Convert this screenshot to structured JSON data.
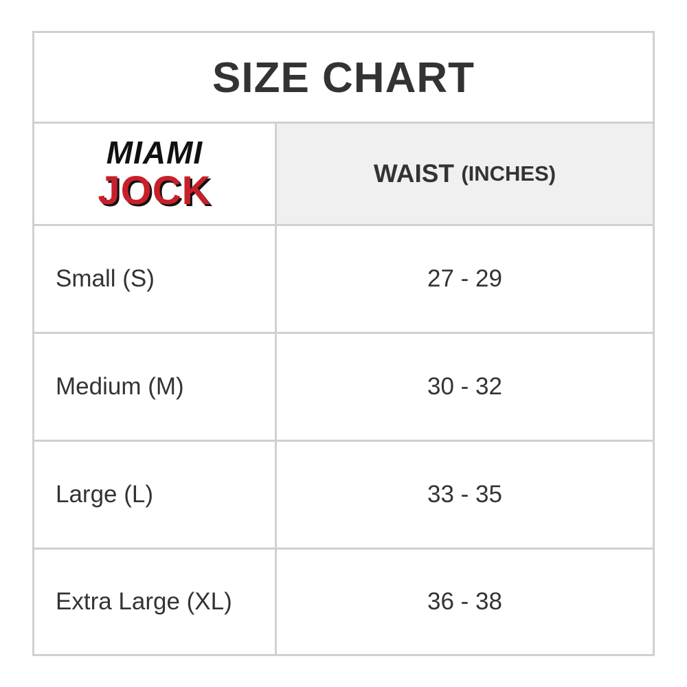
{
  "title": "SIZE CHART",
  "logo": {
    "line1": "MIAMI",
    "line2": "JOCK",
    "colors": {
      "red": "#c8202a",
      "black": "#111111"
    }
  },
  "header": {
    "column_main": "WAIST",
    "column_unit": "(INCHES)"
  },
  "rows": [
    {
      "size": "Small (S)",
      "waist": "27 - 29"
    },
    {
      "size": "Medium (M)",
      "waist": "30 - 32"
    },
    {
      "size": "Large (L)",
      "waist": "33 - 35"
    },
    {
      "size": "Extra Large (XL)",
      "waist": "36 - 38"
    }
  ]
}
